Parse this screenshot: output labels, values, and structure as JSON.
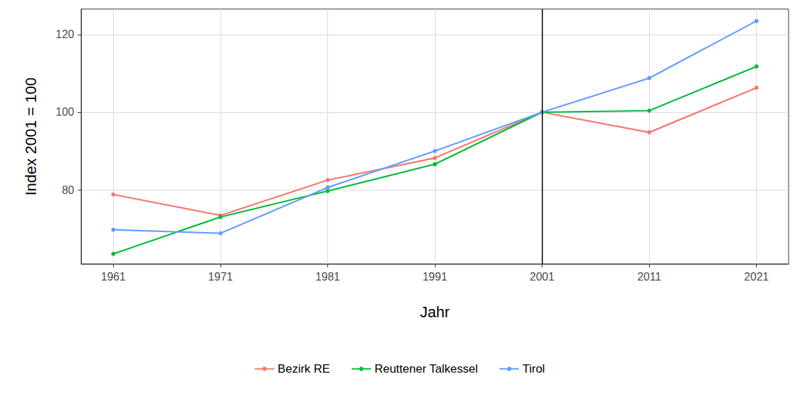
{
  "chart_data": {
    "type": "line",
    "x_label": "Jahr",
    "y_label": "Index 2001 = 100",
    "x": [
      1961,
      1971,
      1981,
      1991,
      2001,
      2011,
      2021
    ],
    "series": [
      {
        "name": "Bezirk RE",
        "color": "#F8766D",
        "values": [
          78.8,
          73.4,
          82.5,
          88.2,
          100,
          94.8,
          106.3
        ]
      },
      {
        "name": "Reuttener Talkessel",
        "color": "#00BA38",
        "values": [
          63.5,
          73.0,
          79.7,
          86.6,
          100,
          100.4,
          111.8
        ]
      },
      {
        "name": "Tirol",
        "color": "#619CFF",
        "values": [
          69.7,
          68.8,
          80.6,
          90.0,
          100,
          108.8,
          123.5
        ]
      }
    ],
    "xlim": [
      1958,
      2024
    ],
    "xticks": [
      1961,
      1971,
      1981,
      1991,
      2001,
      2011,
      2021
    ],
    "ylim": [
      60.9,
      126.6
    ],
    "yticks": [
      80,
      100,
      120
    ],
    "annotations": [
      {
        "type": "vline",
        "x": 2001,
        "color": "#000000"
      }
    ],
    "grid": true,
    "legend": "bottom",
    "marker": "circle"
  }
}
